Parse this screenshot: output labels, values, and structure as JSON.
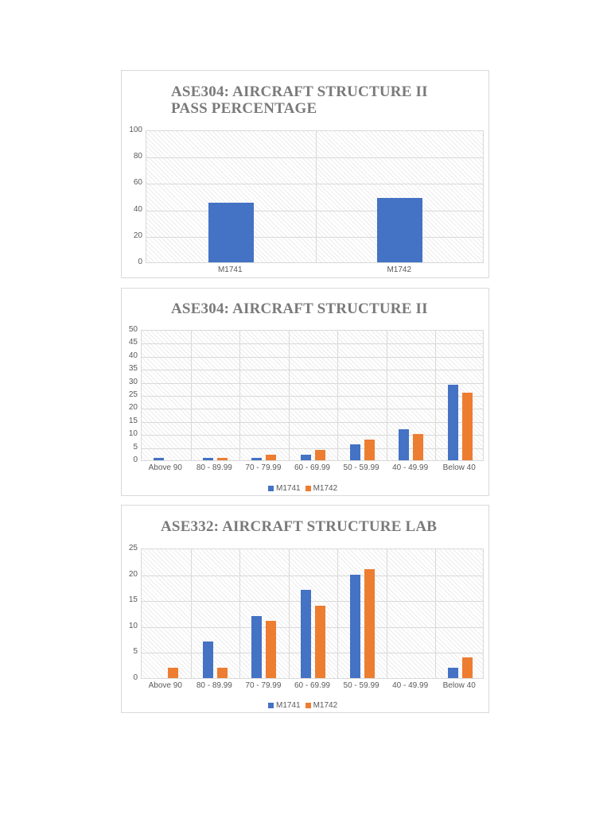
{
  "colors": {
    "M1741": "#4472c4",
    "M1742": "#ed7d31",
    "title": "#7a7a7a",
    "grid": "#d9d9d9"
  },
  "charts": [
    {
      "title_line1": "ASE304: AIRCRAFT STRUCTURE II",
      "title_line2": "PASS PERCENTAGE",
      "y_ticks": [
        "100",
        "80",
        "60",
        "40",
        "20",
        "0"
      ],
      "x_labels": [
        "M1741",
        "M1742"
      ]
    },
    {
      "title_line1": "ASE304: AIRCRAFT STRUCTURE II",
      "y_ticks": [
        "50",
        "45",
        "40",
        "35",
        "30",
        "25",
        "20",
        "15",
        "10",
        "5",
        "0"
      ],
      "x_labels": [
        "Above 90",
        "80 - 89.99",
        "70 - 79.99",
        "60 - 69.99",
        "50 - 59.99",
        "40 - 49.99",
        "Below 40"
      ],
      "legend": [
        "M1741",
        "M1742"
      ]
    },
    {
      "title_line1": "ASE332: AIRCRAFT STRUCTURE LAB",
      "y_ticks": [
        "25",
        "20",
        "15",
        "10",
        "5",
        "0"
      ],
      "x_labels": [
        "Above 90",
        "80 - 89.99",
        "70 - 79.99",
        "60 - 69.99",
        "50 - 59.99",
        "40 - 49.99",
        "Below 40"
      ],
      "legend": [
        "M1741",
        "M1742"
      ]
    }
  ],
  "chart_data": [
    {
      "type": "bar",
      "title": "ASE304: AIRCRAFT STRUCTURE II PASS PERCENTAGE",
      "categories": [
        "M1741",
        "M1742"
      ],
      "values": [
        45,
        49
      ],
      "xlabel": "",
      "ylabel": "",
      "ylim": [
        0,
        100
      ],
      "grid": true,
      "legend": null
    },
    {
      "type": "bar",
      "title": "ASE304: AIRCRAFT STRUCTURE II",
      "categories": [
        "Above 90",
        "80 - 89.99",
        "70 - 79.99",
        "60 - 69.99",
        "50 - 59.99",
        "40 - 49.99",
        "Below 40"
      ],
      "series": [
        {
          "name": "M1741",
          "values": [
            1,
            1,
            1,
            2,
            6,
            12,
            29
          ]
        },
        {
          "name": "M1742",
          "values": [
            0,
            1,
            2,
            4,
            8,
            10,
            26
          ]
        }
      ],
      "xlabel": "",
      "ylabel": "",
      "ylim": [
        0,
        50
      ],
      "grid": true,
      "legend_position": "bottom"
    },
    {
      "type": "bar",
      "title": "ASE332: AIRCRAFT STRUCTURE LAB",
      "categories": [
        "Above 90",
        "80 - 89.99",
        "70 - 79.99",
        "60 - 69.99",
        "50 - 59.99",
        "40 - 49.99",
        "Below 40"
      ],
      "series": [
        {
          "name": "M1741",
          "values": [
            0,
            7,
            12,
            17,
            20,
            0,
            2
          ]
        },
        {
          "name": "M1742",
          "values": [
            2,
            2,
            11,
            14,
            21,
            0,
            4
          ]
        }
      ],
      "xlabel": "",
      "ylabel": "",
      "ylim": [
        0,
        25
      ],
      "grid": true,
      "legend_position": "bottom"
    }
  ]
}
